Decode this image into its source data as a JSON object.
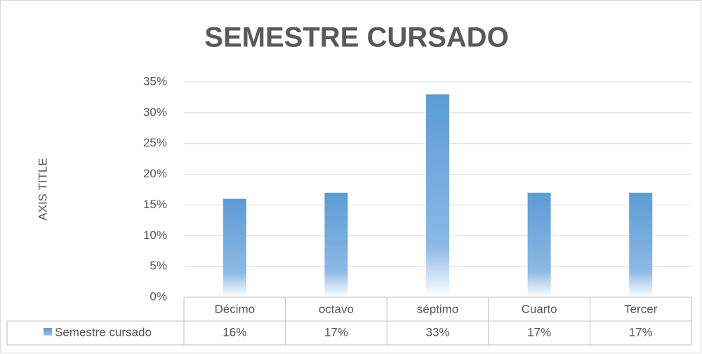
{
  "chart_data": {
    "type": "bar",
    "title": "SEMESTRE CURSADO",
    "y_label": "AXIS TITLE",
    "categories": [
      "Décimo",
      "octavo",
      "séptimo",
      "Cuarto",
      "Tercer"
    ],
    "series": [
      {
        "name": "Semestre cursado",
        "color": "#5b9bd5",
        "values": [
          16,
          17,
          33,
          17,
          17
        ],
        "value_labels": [
          "16%",
          "17%",
          "33%",
          "17%",
          "17%"
        ]
      }
    ],
    "ylim": [
      0,
      35
    ],
    "yticks": [
      {
        "value": 0,
        "label": "0%"
      },
      {
        "value": 5,
        "label": "5%"
      },
      {
        "value": 10,
        "label": "10%"
      },
      {
        "value": 15,
        "label": "15%"
      },
      {
        "value": 20,
        "label": "20%"
      },
      {
        "value": 25,
        "label": "25%"
      },
      {
        "value": 30,
        "label": "30%"
      },
      {
        "value": 35,
        "label": "35%"
      }
    ],
    "grid": true,
    "data_table": true
  }
}
